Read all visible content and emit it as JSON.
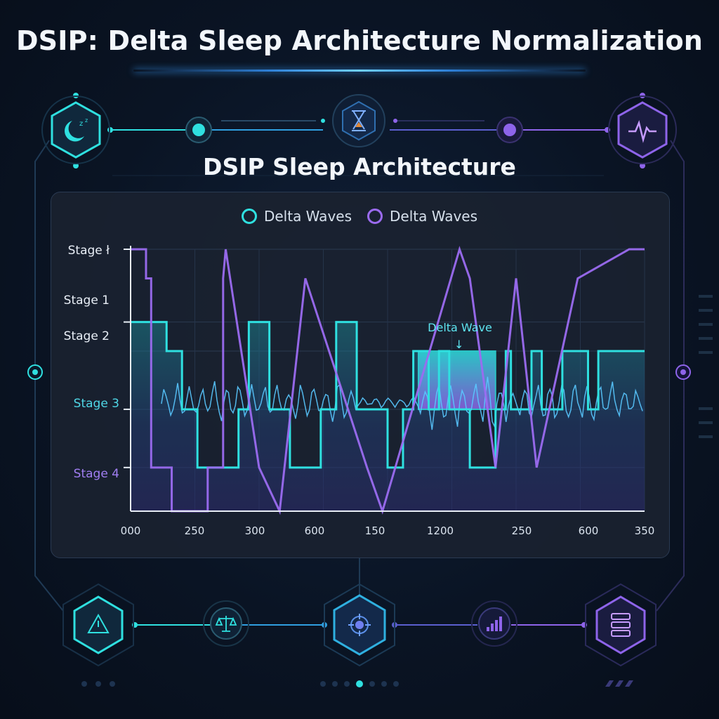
{
  "header": {
    "title": "DSIP: Delta Sleep Architecture Normalization"
  },
  "colors": {
    "teal": "#2fe0e0",
    "purple": "#9b6bf0",
    "background": "#0a1424"
  },
  "top_nav": {
    "icons": [
      "moon-sleep-icon",
      "hourglass-icon",
      "heart-pulse-icon"
    ]
  },
  "bottom_nav": {
    "icons": [
      "warning-icon",
      "scale-balance-icon",
      "target-icon",
      "signal-bars-icon",
      "server-stack-icon"
    ]
  },
  "chart_data": {
    "type": "line",
    "title": "DSIP Sleep Architecture",
    "legend": {
      "placement": "top-center",
      "entries": [
        "Delta Waves",
        "Delta Waves"
      ]
    },
    "y_tick_labels": [
      "Stage ł",
      "Stage 1",
      "Stage 2",
      "Stage 3",
      "Stage 4"
    ],
    "x_tick_labels": [
      "000",
      "250",
      "300",
      "600",
      "150",
      "1200",
      "250",
      "600",
      "350"
    ],
    "annotation": {
      "text": "Delta Wave",
      "arrow": "↓"
    },
    "grid": true,
    "series": [
      {
        "name": "Delta Waves",
        "color": "#2fe0e0",
        "x": [
          0,
          7,
          7,
          10,
          10,
          13,
          13,
          21,
          21,
          23,
          23,
          27,
          27,
          31,
          31,
          37,
          37,
          40,
          40,
          44,
          44,
          50,
          50,
          53,
          53,
          55,
          55,
          58,
          58,
          60,
          60,
          62,
          62,
          66,
          66,
          71,
          71,
          73,
          73,
          74,
          74,
          78,
          78,
          80,
          80,
          84,
          84,
          89,
          89,
          91,
          91,
          100
        ],
        "y": [
          1.0,
          1.0,
          1.4,
          1.4,
          2.2,
          2.2,
          3.0,
          3.0,
          2.2,
          2.2,
          1.0,
          1.0,
          2.2,
          2.2,
          3.0,
          3.0,
          2.2,
          2.2,
          1.0,
          1.0,
          2.2,
          2.2,
          3.0,
          3.0,
          2.2,
          2.2,
          1.4,
          1.4,
          2.2,
          2.2,
          1.4,
          1.4,
          2.2,
          2.2,
          3.0,
          3.0,
          2.2,
          2.2,
          1.4,
          1.4,
          2.2,
          2.2,
          1.4,
          1.4,
          2.2,
          2.2,
          1.4,
          1.4,
          2.2,
          2.2,
          1.4,
          1.4
        ]
      },
      {
        "name": "Delta Waves",
        "color": "#9b6bf0",
        "x": [
          0,
          3,
          3,
          4,
          4,
          8,
          8,
          15,
          15,
          18,
          18,
          18.5,
          18.5,
          25,
          25,
          29,
          29,
          34,
          34,
          46,
          46,
          49,
          49,
          64,
          64,
          66,
          66,
          71,
          71,
          75,
          75,
          79,
          79,
          87,
          87,
          97,
          97,
          100
        ],
        "y": [
          0.0,
          0.0,
          0.4,
          0.4,
          3.0,
          3.0,
          3.6,
          3.6,
          3.0,
          3.0,
          0.4,
          0.0,
          0.0,
          3.0,
          3.0,
          3.6,
          3.6,
          0.4,
          0.4,
          3.0,
          3.0,
          3.6,
          3.6,
          0.0,
          0.0,
          0.4,
          0.4,
          3.0,
          3.0,
          0.4,
          0.4,
          3.0,
          3.0,
          0.4,
          0.4,
          0.0,
          0.0,
          0.0
        ]
      }
    ],
    "highlight_band": {
      "x_start": 56,
      "x_end": 71,
      "y_top": 1.4,
      "y_bottom": 2.2
    }
  }
}
